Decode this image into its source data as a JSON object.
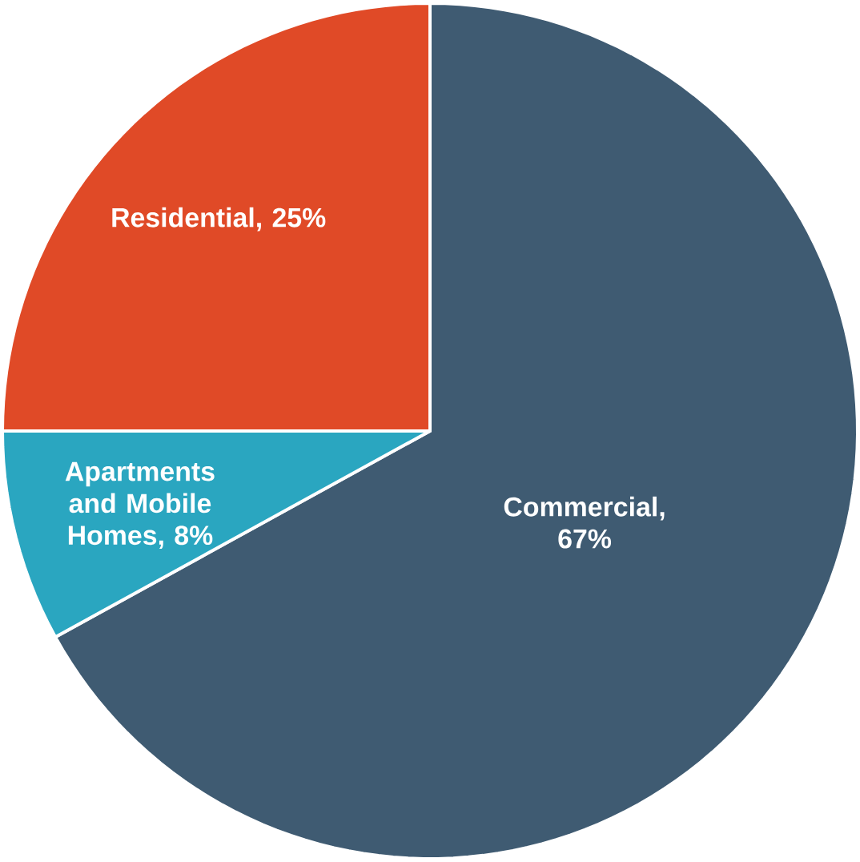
{
  "chart_data": {
    "type": "pie",
    "categories": [
      "Commercial",
      "Apartments and Mobile Homes",
      "Residential"
    ],
    "values": [
      67,
      8,
      25
    ],
    "value_labels": [
      ", 67%",
      ", 8%",
      ", 25%"
    ],
    "legend": false,
    "colors": [
      "#3f5b72",
      "#2aa6c0",
      "#e04a27"
    ]
  }
}
